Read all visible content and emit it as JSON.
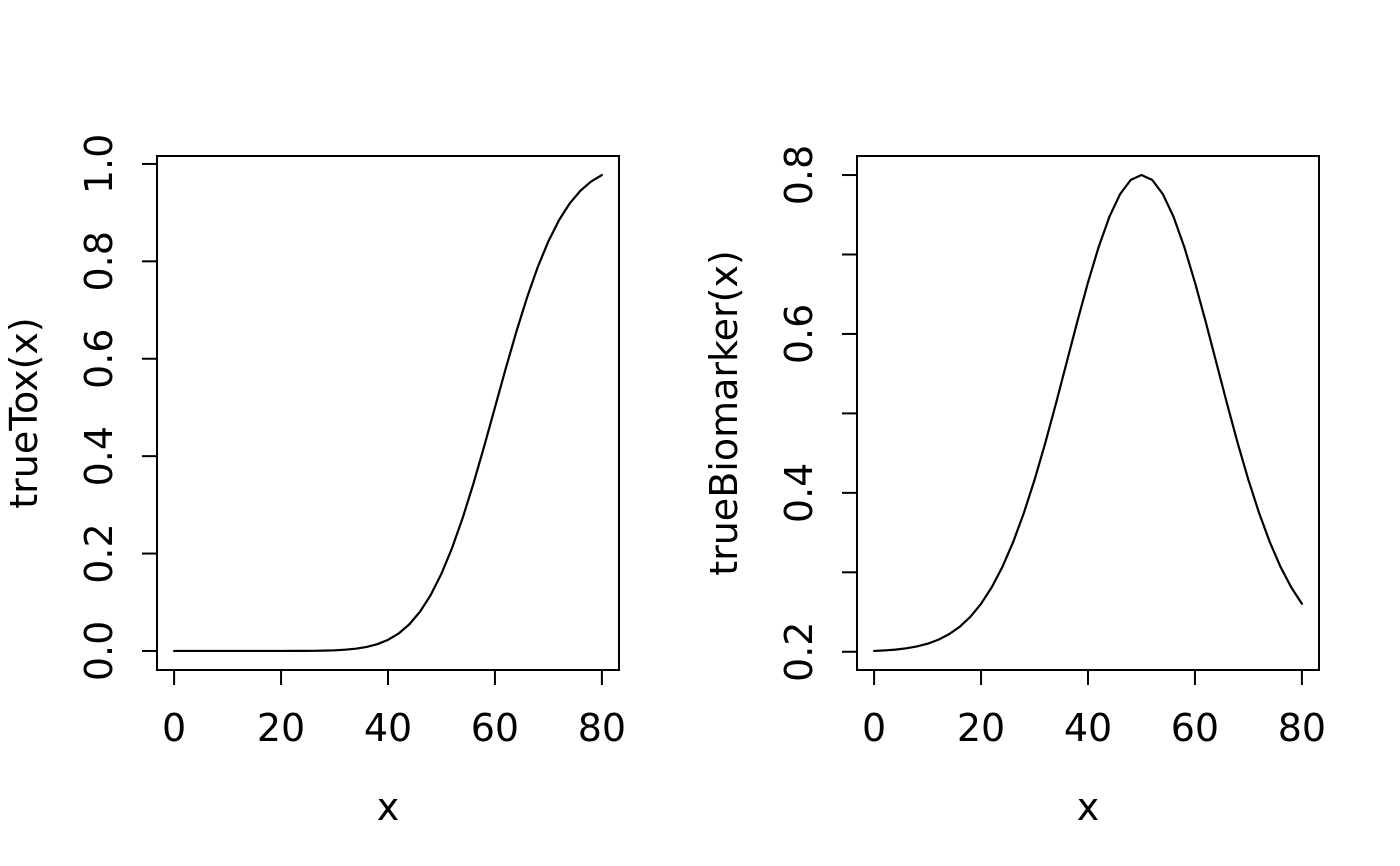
{
  "figure": {
    "background": "#ffffff",
    "axis_color": "#000000",
    "text_color": "#000000"
  },
  "chart_data": [
    {
      "type": "line",
      "title": "",
      "series": [
        {
          "name": "trueTox",
          "color": "#000000"
        }
      ],
      "xlabel": "x",
      "ylabel": "trueTox(x)",
      "xlim": [
        0,
        80
      ],
      "ylim": [
        0,
        1
      ],
      "grid": false,
      "legend": "none",
      "xticks": {
        "values": [
          0,
          20,
          40,
          60,
          80
        ],
        "labels": [
          "0",
          "20",
          "40",
          "60",
          "80"
        ]
      },
      "yticks": {
        "values": [
          0.0,
          0.2,
          0.4,
          0.6,
          0.8,
          1.0
        ],
        "labels": [
          "0.0",
          "0.2",
          "0.4",
          "0.6",
          "0.8",
          "1.0"
        ]
      },
      "x": [
        0,
        2,
        4,
        6,
        8,
        10,
        12,
        14,
        16,
        18,
        20,
        22,
        24,
        26,
        28,
        30,
        32,
        34,
        36,
        38,
        40,
        42,
        44,
        46,
        48,
        50,
        52,
        54,
        56,
        58,
        60,
        62,
        64,
        66,
        68,
        70,
        72,
        74,
        76,
        78,
        80
      ],
      "y": [
        0.0,
        0.0,
        0.0,
        0.0,
        0.0,
        0.0,
        0.0,
        0.0,
        0.0,
        0.0,
        0.0,
        0.0001,
        0.0002,
        0.0003,
        0.0007,
        0.0013,
        0.0026,
        0.0047,
        0.0082,
        0.0139,
        0.0228,
        0.0359,
        0.0548,
        0.0808,
        0.1151,
        0.1587,
        0.2119,
        0.2743,
        0.3446,
        0.4207,
        0.5,
        0.5793,
        0.6554,
        0.7257,
        0.7881,
        0.8413,
        0.8849,
        0.9192,
        0.9452,
        0.9641,
        0.9772
      ]
    },
    {
      "type": "line",
      "title": "",
      "series": [
        {
          "name": "trueBiomarker",
          "color": "#000000"
        }
      ],
      "xlabel": "x",
      "ylabel": "trueBiomarker(x)",
      "xlim": [
        0,
        80
      ],
      "ylim": [
        0.2,
        0.8
      ],
      "grid": false,
      "legend": "none",
      "xticks": {
        "values": [
          0,
          20,
          40,
          60,
          80
        ],
        "labels": [
          "0",
          "20",
          "40",
          "60",
          "80"
        ]
      },
      "yticks": {
        "values": [
          0.2,
          0.3,
          0.4,
          0.5,
          0.6,
          0.7,
          0.8
        ],
        "labels": [
          "0.2",
          "",
          "0.4",
          "",
          "0.6",
          "",
          "0.8"
        ]
      },
      "x": [
        0,
        2,
        4,
        6,
        8,
        10,
        12,
        14,
        16,
        18,
        20,
        22,
        24,
        26,
        28,
        30,
        32,
        34,
        36,
        38,
        40,
        42,
        44,
        46,
        48,
        50,
        52,
        54,
        56,
        58,
        60,
        62,
        64,
        66,
        68,
        70,
        72,
        74,
        76,
        78,
        80
      ],
      "y": [
        0.201,
        0.2017,
        0.2027,
        0.2043,
        0.2067,
        0.2101,
        0.2151,
        0.222,
        0.2314,
        0.244,
        0.2604,
        0.2812,
        0.3069,
        0.338,
        0.3746,
        0.4163,
        0.4625,
        0.5123,
        0.5639,
        0.6156,
        0.6649,
        0.7096,
        0.7474,
        0.776,
        0.7939,
        0.8,
        0.7939,
        0.776,
        0.7474,
        0.7096,
        0.6649,
        0.6156,
        0.5639,
        0.5123,
        0.4625,
        0.4163,
        0.3746,
        0.338,
        0.3069,
        0.2812,
        0.2604
      ]
    }
  ]
}
